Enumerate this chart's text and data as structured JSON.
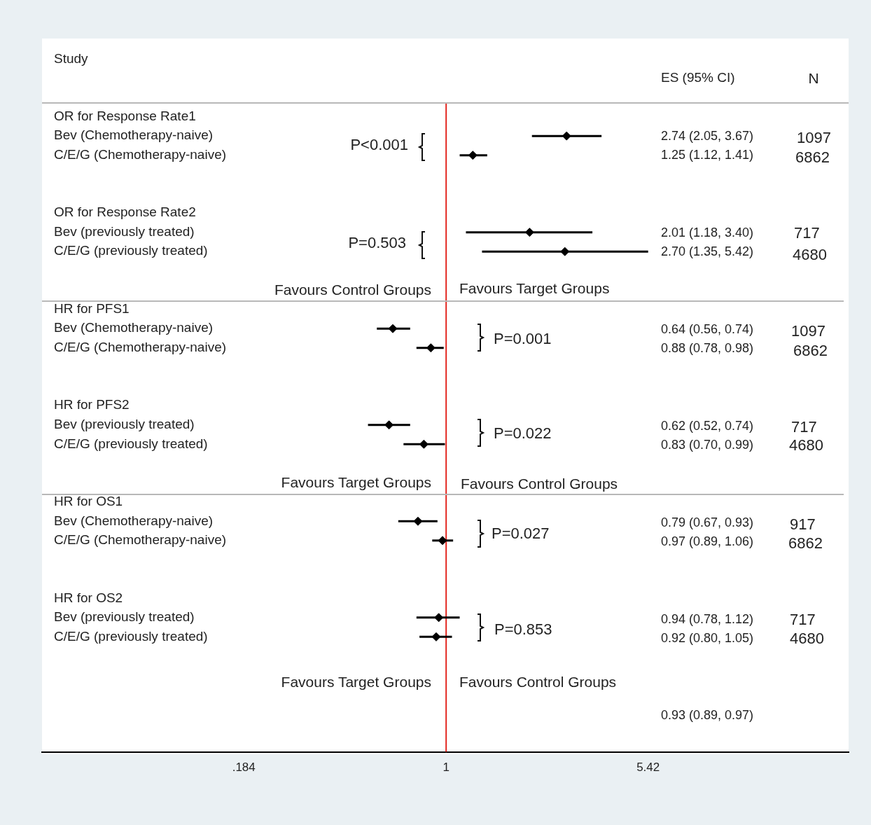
{
  "chart_data": {
    "type": "scatter",
    "log": "x",
    "grid": false,
    "legend": false,
    "marker": "diamond",
    "color": "#000000",
    "categories": [
      "OR for Response Rate1",
      "Bev (Chemotherapy-naive)",
      "C/E/G (Chemotherapy-naive)",
      null,
      null,
      "OR for Response Rate2",
      "Bev (previously treated)",
      "C/E/G (previously treated)",
      null,
      null,
      "HR for PFS1",
      "Bev (Chemotherapy-naive)",
      "C/E/G (Chemotherapy-naive)",
      null,
      null,
      "HR for PFS2",
      "Bev (previously treated)",
      "C/E/G (previously treated)",
      null,
      null,
      "HR for OS1",
      "Bev (Chemotherapy-naive)",
      "C/E/G (Chemotherapy-naive)",
      null,
      null,
      "HR for OS2",
      "Bev (previously treated)",
      "C/E/G (previously treated)",
      null,
      null,
      null,
      null
    ],
    "values": [
      null,
      2.74,
      1.25,
      null,
      null,
      null,
      2.01,
      2.7,
      null,
      null,
      null,
      0.64,
      0.88,
      null,
      null,
      null,
      0.62,
      0.83,
      null,
      null,
      null,
      0.79,
      0.97,
      null,
      null,
      null,
      0.94,
      0.92,
      null,
      null,
      null,
      null
    ],
    "errors": [
      null,
      [
        2.05,
        3.67
      ],
      [
        1.12,
        1.41
      ],
      null,
      null,
      null,
      [
        1.18,
        3.4
      ],
      [
        1.35,
        5.42
      ],
      null,
      null,
      null,
      [
        0.56,
        0.74
      ],
      [
        0.78,
        0.98
      ],
      null,
      null,
      null,
      [
        0.52,
        0.74
      ],
      [
        0.7,
        0.99
      ],
      null,
      null,
      null,
      [
        0.67,
        0.93
      ],
      [
        0.89,
        1.06
      ],
      null,
      null,
      null,
      [
        0.78,
        1.12
      ],
      [
        0.8,
        1.05
      ],
      null,
      null,
      null,
      null
    ],
    "orientation": "horizontal",
    "xlim": [
      0.034,
      29
    ],
    "xticks": [
      {
        "value": 0.184,
        "label": ".184"
      },
      {
        "value": 1,
        "label": "1"
      },
      {
        "value": 5.42,
        "label": "5.42"
      }
    ],
    "ref_lines": [
      {
        "axis": "x",
        "value": 1,
        "color": "#e3261f"
      }
    ],
    "annotations": [
      "Study",
      "ES (95% CI)",
      "N",
      "P<0.001",
      "P=0.503",
      "Favours Control Groups",
      "Favours Target Groups",
      "P=0.001",
      "P=0.022",
      "Favours Target Groups",
      "Favours Control Groups",
      "P=0.027",
      "P=0.853",
      "Favours Target Groups",
      "Favours Control Groups",
      "0.93 (0.89, 0.97)",
      "1097",
      "6862",
      "717",
      "4680",
      "1097",
      "6862",
      "717",
      "4680",
      "917",
      "6862",
      "717",
      "4680",
      "2.74 (2.05, 3.67)",
      "1.25 (1.12, 1.41)",
      "2.01 (1.18, 3.40)",
      "2.70 (1.35, 5.42)",
      "0.64 (0.56, 0.74)",
      "0.88 (0.78, 0.98)",
      "0.62 (0.52, 0.74)",
      "0.83 (0.70, 0.99)",
      "0.79 (0.67, 0.93)",
      "0.97 (0.89, 1.06)",
      "0.94 (0.78, 1.12)",
      "0.92 (0.80, 1.05)"
    ]
  }
}
